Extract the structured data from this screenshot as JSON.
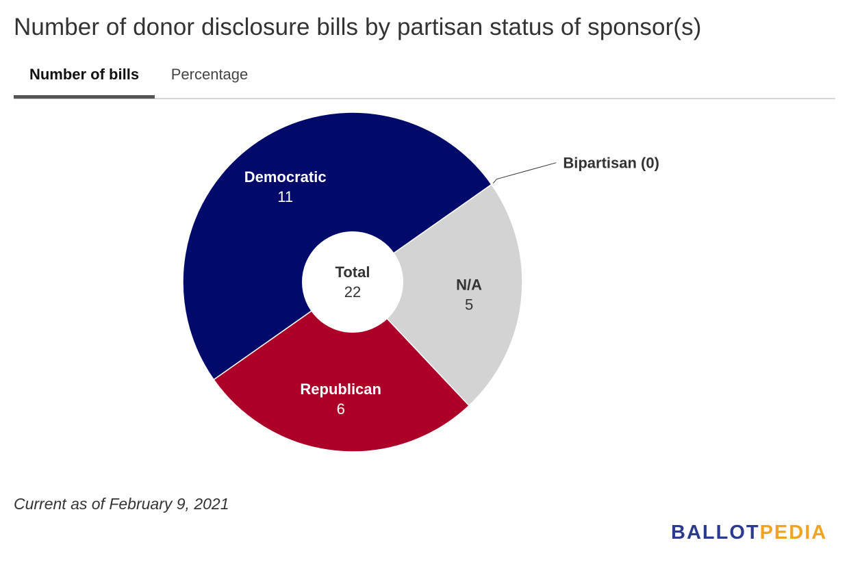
{
  "title": "Number of donor disclosure bills by partisan status of sponsor(s)",
  "tabs": [
    {
      "label": "Number of bills",
      "active": true
    },
    {
      "label": "Percentage",
      "active": false
    }
  ],
  "chart_data": {
    "type": "pie",
    "title": "Number of donor disclosure bills by partisan status of sponsor(s)",
    "center_label": "Total",
    "center_value": "22",
    "slices": [
      {
        "name": "Bipartisan",
        "value": 0,
        "color": "#ffffff",
        "label": "Bipartisan (0)"
      },
      {
        "name": "N/A",
        "value": 5,
        "color": "#d3d3d3",
        "label": "N/A",
        "value_label": "5"
      },
      {
        "name": "Republican",
        "value": 6,
        "color": "#ad0028",
        "label": "Republican",
        "value_label": "6"
      },
      {
        "name": "Democratic",
        "value": 11,
        "color": "#000a6b",
        "label": "Democratic",
        "value_label": "11"
      }
    ]
  },
  "footnote": "Current as of February 9, 2021",
  "logo": {
    "part1": "BALLOT",
    "part2": "PEDIA",
    "color1": "#2b3a8f",
    "color2": "#f0a422"
  }
}
